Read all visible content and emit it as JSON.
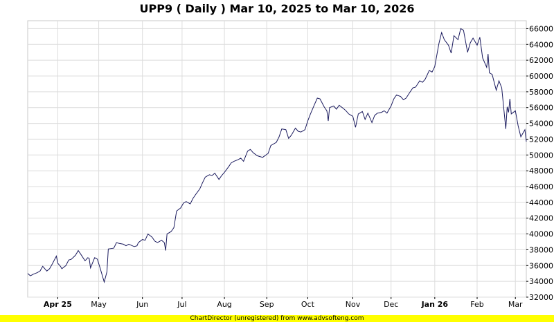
{
  "chart_data": {
    "type": "line",
    "title": "UPP9 ( Daily ) Mar 10, 2025 to Mar 10, 2026",
    "xlabel": "",
    "ylabel": "",
    "ylim": [
      32000,
      67000
    ],
    "y_ticks": [
      32000,
      34000,
      36000,
      38000,
      40000,
      42000,
      44000,
      46000,
      48000,
      50000,
      52000,
      54000,
      56000,
      58000,
      60000,
      62000,
      64000,
      66000
    ],
    "y_tick_labels": [
      "32000",
      "34000",
      "36000",
      "38000",
      "40000",
      "42000",
      "44000",
      "46000",
      "48000",
      "50000",
      "52000",
      "54000",
      "56000",
      "58000",
      "60000",
      "62000",
      "64000",
      "66000"
    ],
    "x_range": [
      "2025-03-10",
      "2026-03-10"
    ],
    "x_ticks": [
      {
        "date": "2025-04-01",
        "label": "Apr 25",
        "bold": true
      },
      {
        "date": "2025-05-01",
        "label": "May",
        "bold": false
      },
      {
        "date": "2025-06-02",
        "label": "Jun",
        "bold": false
      },
      {
        "date": "2025-07-01",
        "label": "Jul",
        "bold": false
      },
      {
        "date": "2025-08-01",
        "label": "Aug",
        "bold": false
      },
      {
        "date": "2025-09-01",
        "label": "Sep",
        "bold": false
      },
      {
        "date": "2025-10-01",
        "label": "Oct",
        "bold": false
      },
      {
        "date": "2025-11-03",
        "label": "Nov",
        "bold": false
      },
      {
        "date": "2025-12-01",
        "label": "Dec",
        "bold": false
      },
      {
        "date": "2026-01-02",
        "label": "Jan 26",
        "bold": true
      },
      {
        "date": "2026-02-02",
        "label": "Feb",
        "bold": false
      },
      {
        "date": "2026-03-02",
        "label": "Mar",
        "bold": false
      }
    ],
    "grid": true,
    "line_color": "#1a1a5e",
    "series": [
      {
        "values": [
          [
            "2025-03-10",
            35000
          ],
          [
            "2025-03-12",
            34700
          ],
          [
            "2025-03-14",
            34900
          ],
          [
            "2025-03-17",
            35100
          ],
          [
            "2025-03-19",
            35300
          ],
          [
            "2025-03-21",
            35900
          ],
          [
            "2025-03-24",
            35300
          ],
          [
            "2025-03-26",
            35600
          ],
          [
            "2025-03-28",
            36200
          ],
          [
            "2025-03-31",
            37200
          ],
          [
            "2025-04-01",
            36300
          ],
          [
            "2025-04-03",
            35900
          ],
          [
            "2025-04-04",
            35600
          ],
          [
            "2025-04-07",
            36000
          ],
          [
            "2025-04-09",
            36700
          ],
          [
            "2025-04-11",
            36800
          ],
          [
            "2025-04-14",
            37300
          ],
          [
            "2025-04-16",
            37900
          ],
          [
            "2025-04-18",
            37400
          ],
          [
            "2025-04-21",
            36600
          ],
          [
            "2025-04-23",
            37000
          ],
          [
            "2025-04-24",
            36900
          ],
          [
            "2025-04-25",
            35700
          ],
          [
            "2025-04-28",
            37000
          ],
          [
            "2025-04-30",
            36800
          ],
          [
            "2025-05-02",
            35700
          ],
          [
            "2025-05-05",
            33900
          ],
          [
            "2025-05-07",
            35200
          ],
          [
            "2025-05-08",
            38100
          ],
          [
            "2025-05-12",
            38200
          ],
          [
            "2025-05-14",
            38900
          ],
          [
            "2025-05-16",
            38800
          ],
          [
            "2025-05-19",
            38700
          ],
          [
            "2025-05-21",
            38500
          ],
          [
            "2025-05-23",
            38700
          ],
          [
            "2025-05-27",
            38400
          ],
          [
            "2025-05-29",
            38500
          ],
          [
            "2025-05-30",
            38900
          ],
          [
            "2025-06-02",
            39300
          ],
          [
            "2025-06-04",
            39200
          ],
          [
            "2025-06-06",
            40000
          ],
          [
            "2025-06-09",
            39600
          ],
          [
            "2025-06-11",
            39100
          ],
          [
            "2025-06-13",
            38900
          ],
          [
            "2025-06-16",
            39200
          ],
          [
            "2025-06-18",
            38900
          ],
          [
            "2025-06-19",
            37900
          ],
          [
            "2025-06-20",
            40000
          ],
          [
            "2025-06-23",
            40300
          ],
          [
            "2025-06-25",
            40800
          ],
          [
            "2025-06-27",
            42900
          ],
          [
            "2025-06-30",
            43300
          ],
          [
            "2025-07-02",
            43900
          ],
          [
            "2025-07-04",
            44100
          ],
          [
            "2025-07-07",
            43800
          ],
          [
            "2025-07-09",
            44500
          ],
          [
            "2025-07-11",
            45000
          ],
          [
            "2025-07-14",
            45700
          ],
          [
            "2025-07-16",
            46500
          ],
          [
            "2025-07-18",
            47200
          ],
          [
            "2025-07-21",
            47500
          ],
          [
            "2025-07-23",
            47400
          ],
          [
            "2025-07-25",
            47700
          ],
          [
            "2025-07-28",
            46900
          ],
          [
            "2025-07-30",
            47400
          ],
          [
            "2025-08-01",
            47800
          ],
          [
            "2025-08-04",
            48500
          ],
          [
            "2025-08-06",
            49000
          ],
          [
            "2025-08-08",
            49200
          ],
          [
            "2025-08-11",
            49400
          ],
          [
            "2025-08-13",
            49600
          ],
          [
            "2025-08-15",
            49200
          ],
          [
            "2025-08-18",
            50500
          ],
          [
            "2025-08-20",
            50700
          ],
          [
            "2025-08-22",
            50300
          ],
          [
            "2025-08-25",
            49900
          ],
          [
            "2025-08-27",
            49800
          ],
          [
            "2025-08-29",
            49700
          ],
          [
            "2025-09-02",
            50200
          ],
          [
            "2025-09-04",
            51200
          ],
          [
            "2025-09-08",
            51600
          ],
          [
            "2025-09-10",
            52300
          ],
          [
            "2025-09-12",
            53300
          ],
          [
            "2025-09-15",
            53200
          ],
          [
            "2025-09-17",
            52100
          ],
          [
            "2025-09-19",
            52500
          ],
          [
            "2025-09-22",
            53400
          ],
          [
            "2025-09-24",
            53000
          ],
          [
            "2025-09-26",
            52900
          ],
          [
            "2025-09-29",
            53200
          ],
          [
            "2025-10-01",
            54300
          ],
          [
            "2025-10-03",
            55200
          ],
          [
            "2025-10-06",
            56400
          ],
          [
            "2025-10-08",
            57200
          ],
          [
            "2025-10-10",
            57100
          ],
          [
            "2025-10-13",
            56100
          ],
          [
            "2025-10-15",
            55600
          ],
          [
            "2025-10-16",
            54300
          ],
          [
            "2025-10-17",
            56000
          ],
          [
            "2025-10-20",
            56200
          ],
          [
            "2025-10-22",
            55800
          ],
          [
            "2025-10-24",
            56300
          ],
          [
            "2025-10-27",
            55900
          ],
          [
            "2025-10-29",
            55600
          ],
          [
            "2025-10-31",
            55200
          ],
          [
            "2025-11-03",
            54900
          ],
          [
            "2025-11-05",
            53500
          ],
          [
            "2025-11-07",
            55200
          ],
          [
            "2025-11-10",
            55500
          ],
          [
            "2025-11-12",
            54500
          ],
          [
            "2025-11-14",
            55300
          ],
          [
            "2025-11-17",
            54100
          ],
          [
            "2025-11-19",
            55000
          ],
          [
            "2025-11-21",
            55300
          ],
          [
            "2025-11-24",
            55400
          ],
          [
            "2025-11-26",
            55600
          ],
          [
            "2025-11-28",
            55300
          ],
          [
            "2025-12-01",
            56200
          ],
          [
            "2025-12-03",
            57100
          ],
          [
            "2025-12-05",
            57600
          ],
          [
            "2025-12-08",
            57400
          ],
          [
            "2025-12-10",
            57000
          ],
          [
            "2025-12-12",
            57200
          ],
          [
            "2025-12-15",
            58000
          ],
          [
            "2025-12-17",
            58500
          ],
          [
            "2025-12-19",
            58600
          ],
          [
            "2025-12-22",
            59400
          ],
          [
            "2025-12-24",
            59200
          ],
          [
            "2025-12-26",
            59600
          ],
          [
            "2025-12-29",
            60700
          ],
          [
            "2025-12-31",
            60500
          ],
          [
            "2026-01-02",
            61200
          ],
          [
            "2026-01-05",
            64100
          ],
          [
            "2026-01-07",
            65500
          ],
          [
            "2026-01-09",
            64600
          ],
          [
            "2026-01-12",
            63900
          ],
          [
            "2026-01-14",
            62900
          ],
          [
            "2026-01-16",
            65100
          ],
          [
            "2026-01-19",
            64600
          ],
          [
            "2026-01-21",
            66000
          ],
          [
            "2026-01-23",
            65800
          ],
          [
            "2026-01-26",
            63000
          ],
          [
            "2026-01-28",
            64200
          ],
          [
            "2026-01-30",
            64800
          ],
          [
            "2026-02-02",
            63900
          ],
          [
            "2026-02-04",
            64900
          ],
          [
            "2026-02-06",
            62300
          ],
          [
            "2026-02-09",
            61100
          ],
          [
            "2026-02-10",
            62800
          ],
          [
            "2026-02-11",
            60400
          ],
          [
            "2026-02-13",
            60200
          ],
          [
            "2026-02-16",
            58200
          ],
          [
            "2026-02-18",
            59400
          ],
          [
            "2026-02-20",
            58500
          ],
          [
            "2026-02-23",
            53300
          ],
          [
            "2026-02-24",
            56100
          ],
          [
            "2026-02-25",
            55400
          ],
          [
            "2026-02-26",
            57100
          ],
          [
            "2026-02-27",
            55200
          ],
          [
            "2026-03-02",
            55600
          ],
          [
            "2026-03-04",
            53700
          ],
          [
            "2026-03-06",
            52300
          ],
          [
            "2026-03-09",
            53200
          ],
          [
            "2026-03-10",
            51700
          ]
        ]
      }
    ]
  },
  "footer": {
    "text": "ChartDirector (unregistered) from www.advsofteng.com",
    "color": "#ffff00"
  }
}
